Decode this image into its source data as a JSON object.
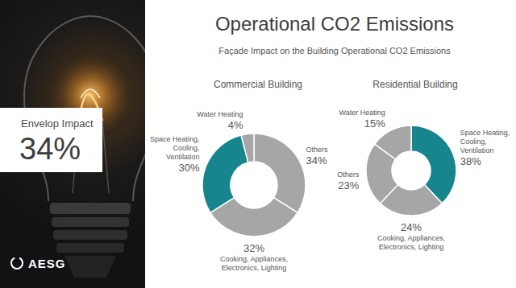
{
  "title": "Operational CO2 Emissions",
  "subtitle": "Façade Impact on the Building Operational CO2 Emissions",
  "sidebar": {
    "label": "Envelop Impact",
    "value": "34%"
  },
  "logo": "AESG",
  "chart_data": [
    {
      "type": "donut",
      "title": "Commercial Building",
      "categories": [
        "Others",
        "Cooking, Appliances, Electronics, Lighting",
        "Space Heating, Cooling, Ventilation",
        "Water Heating"
      ],
      "values": [
        34,
        32,
        30,
        4
      ],
      "value_labels": [
        "34%",
        "32%",
        "30%",
        "4%"
      ],
      "colors": [
        "#a6a6a6",
        "#a6a6a6",
        "#16858e",
        "#a6a6a6"
      ],
      "data_labels": true
    },
    {
      "type": "donut",
      "title": "Residential Building",
      "categories": [
        "Space Heating, Cooling, Ventilation",
        "Cooking, Appliances, Electronics, Lighting",
        "Others",
        "Water Heating"
      ],
      "values": [
        38,
        24,
        23,
        15
      ],
      "value_labels": [
        "38%",
        "24%",
        "23%",
        "15%"
      ],
      "colors": [
        "#16858e",
        "#a6a6a6",
        "#a6a6a6",
        "#a6a6a6"
      ],
      "data_labels": true
    }
  ]
}
